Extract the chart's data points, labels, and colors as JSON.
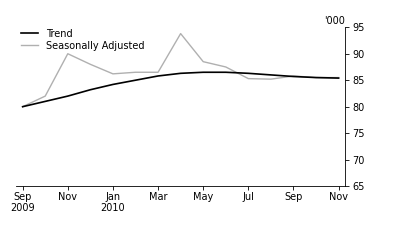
{
  "trend": [
    80.0,
    81.0,
    82.0,
    83.2,
    84.2,
    85.0,
    85.8,
    86.3,
    86.5,
    86.5,
    86.3,
    86.0,
    85.7,
    85.5,
    85.4
  ],
  "seasonal": [
    80.0,
    82.0,
    90.0,
    88.0,
    86.2,
    86.5,
    86.5,
    93.8,
    88.5,
    87.5,
    85.3,
    85.2,
    85.8,
    85.5,
    85.5
  ],
  "trend_color": "#000000",
  "seasonal_color": "#b0b0b0",
  "background_color": "#ffffff",
  "ylim": [
    65,
    95
  ],
  "yticks": [
    65,
    70,
    75,
    80,
    85,
    90,
    95
  ],
  "ylabel_top": "'000",
  "tick_positions": [
    0,
    2,
    4,
    6,
    8,
    10,
    12,
    14
  ],
  "tick_labels": [
    "Sep\n2009",
    "Nov",
    "Jan\n2010",
    "Mar",
    "May",
    "Jul",
    "Sep",
    "Nov"
  ],
  "legend_labels": [
    "Trend",
    "Seasonally Adjusted"
  ],
  "figsize": [
    3.97,
    2.27
  ],
  "dpi": 100
}
